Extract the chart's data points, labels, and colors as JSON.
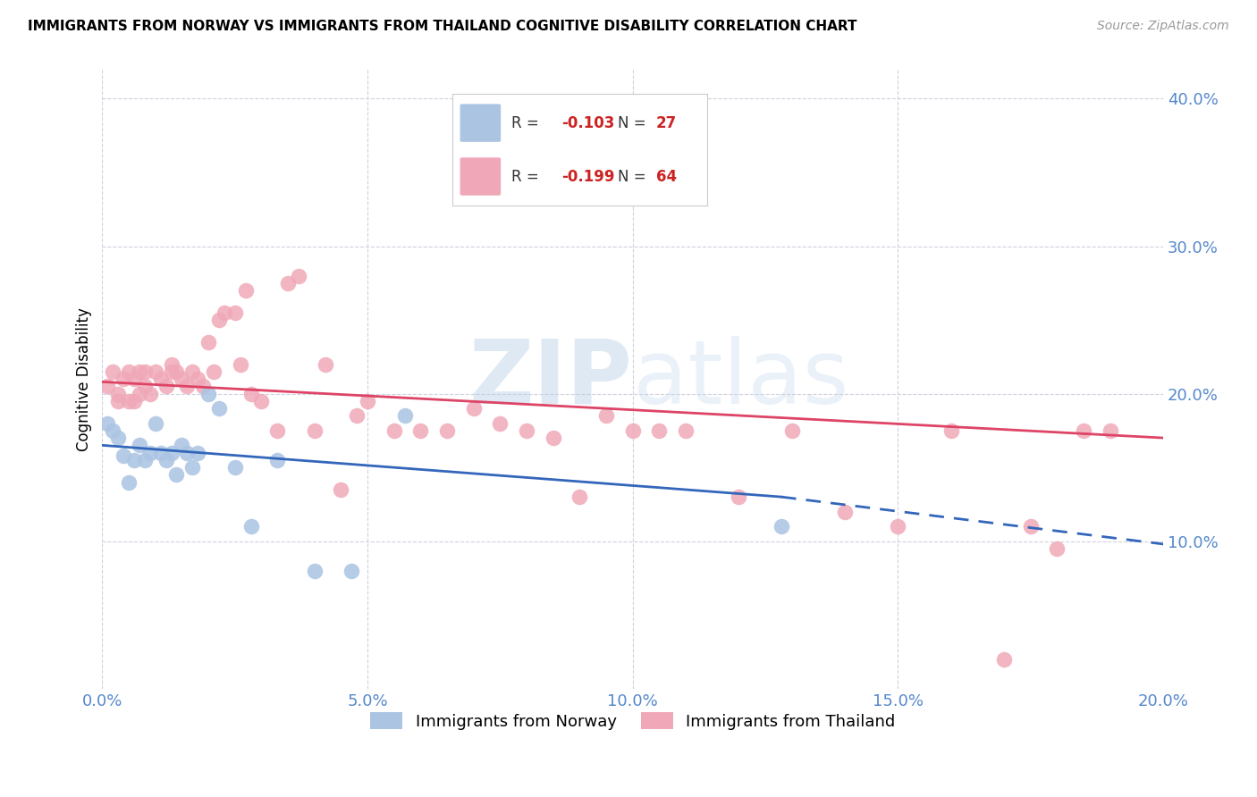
{
  "title": "IMMIGRANTS FROM NORWAY VS IMMIGRANTS FROM THAILAND COGNITIVE DISABILITY CORRELATION CHART",
  "source": "Source: ZipAtlas.com",
  "ylabel": "Cognitive Disability",
  "xlim": [
    0.0,
    0.2
  ],
  "ylim": [
    0.0,
    0.42
  ],
  "xticks": [
    0.0,
    0.05,
    0.1,
    0.15,
    0.2
  ],
  "yticks": [
    0.1,
    0.2,
    0.3,
    0.4
  ],
  "norway_R": -0.103,
  "norway_N": 27,
  "thailand_R": -0.199,
  "thailand_N": 64,
  "norway_color": "#aac4e2",
  "thailand_color": "#f0a8b8",
  "norway_line_color": "#3366bb",
  "thailand_line_color": "#dd4466",
  "watermark_zip": "ZIP",
  "watermark_atlas": "atlas",
  "norway_x": [
    0.001,
    0.002,
    0.003,
    0.004,
    0.005,
    0.006,
    0.007,
    0.008,
    0.009,
    0.01,
    0.011,
    0.012,
    0.013,
    0.014,
    0.015,
    0.016,
    0.017,
    0.018,
    0.02,
    0.022,
    0.025,
    0.028,
    0.033,
    0.04,
    0.047,
    0.057,
    0.128
  ],
  "norway_y": [
    0.18,
    0.175,
    0.17,
    0.158,
    0.14,
    0.155,
    0.165,
    0.155,
    0.16,
    0.18,
    0.16,
    0.155,
    0.16,
    0.145,
    0.165,
    0.16,
    0.15,
    0.16,
    0.2,
    0.19,
    0.15,
    0.11,
    0.155,
    0.08,
    0.08,
    0.185,
    0.11
  ],
  "thailand_x": [
    0.001,
    0.002,
    0.003,
    0.003,
    0.004,
    0.005,
    0.005,
    0.006,
    0.006,
    0.007,
    0.007,
    0.008,
    0.008,
    0.009,
    0.01,
    0.011,
    0.012,
    0.013,
    0.013,
    0.014,
    0.015,
    0.016,
    0.017,
    0.018,
    0.019,
    0.02,
    0.021,
    0.022,
    0.023,
    0.025,
    0.026,
    0.027,
    0.028,
    0.03,
    0.033,
    0.035,
    0.037,
    0.04,
    0.042,
    0.045,
    0.048,
    0.05,
    0.055,
    0.06,
    0.065,
    0.07,
    0.075,
    0.08,
    0.085,
    0.09,
    0.095,
    0.1,
    0.105,
    0.11,
    0.12,
    0.13,
    0.14,
    0.15,
    0.16,
    0.17,
    0.175,
    0.18,
    0.185,
    0.19
  ],
  "thailand_y": [
    0.205,
    0.215,
    0.2,
    0.195,
    0.21,
    0.215,
    0.195,
    0.21,
    0.195,
    0.215,
    0.2,
    0.215,
    0.205,
    0.2,
    0.215,
    0.21,
    0.205,
    0.22,
    0.215,
    0.215,
    0.21,
    0.205,
    0.215,
    0.21,
    0.205,
    0.235,
    0.215,
    0.25,
    0.255,
    0.255,
    0.22,
    0.27,
    0.2,
    0.195,
    0.175,
    0.275,
    0.28,
    0.175,
    0.22,
    0.135,
    0.185,
    0.195,
    0.175,
    0.175,
    0.175,
    0.19,
    0.18,
    0.175,
    0.17,
    0.13,
    0.185,
    0.175,
    0.175,
    0.175,
    0.13,
    0.175,
    0.12,
    0.11,
    0.175,
    0.02,
    0.11,
    0.095,
    0.175,
    0.175
  ],
  "norway_line_x0": 0.0,
  "norway_line_y0": 0.165,
  "norway_line_x_solid_end": 0.128,
  "norway_line_y_solid_end": 0.13,
  "norway_line_x1": 0.2,
  "norway_line_y1": 0.098,
  "thailand_line_x0": 0.0,
  "thailand_line_y0": 0.208,
  "thailand_line_x1": 0.2,
  "thailand_line_y1": 0.17
}
